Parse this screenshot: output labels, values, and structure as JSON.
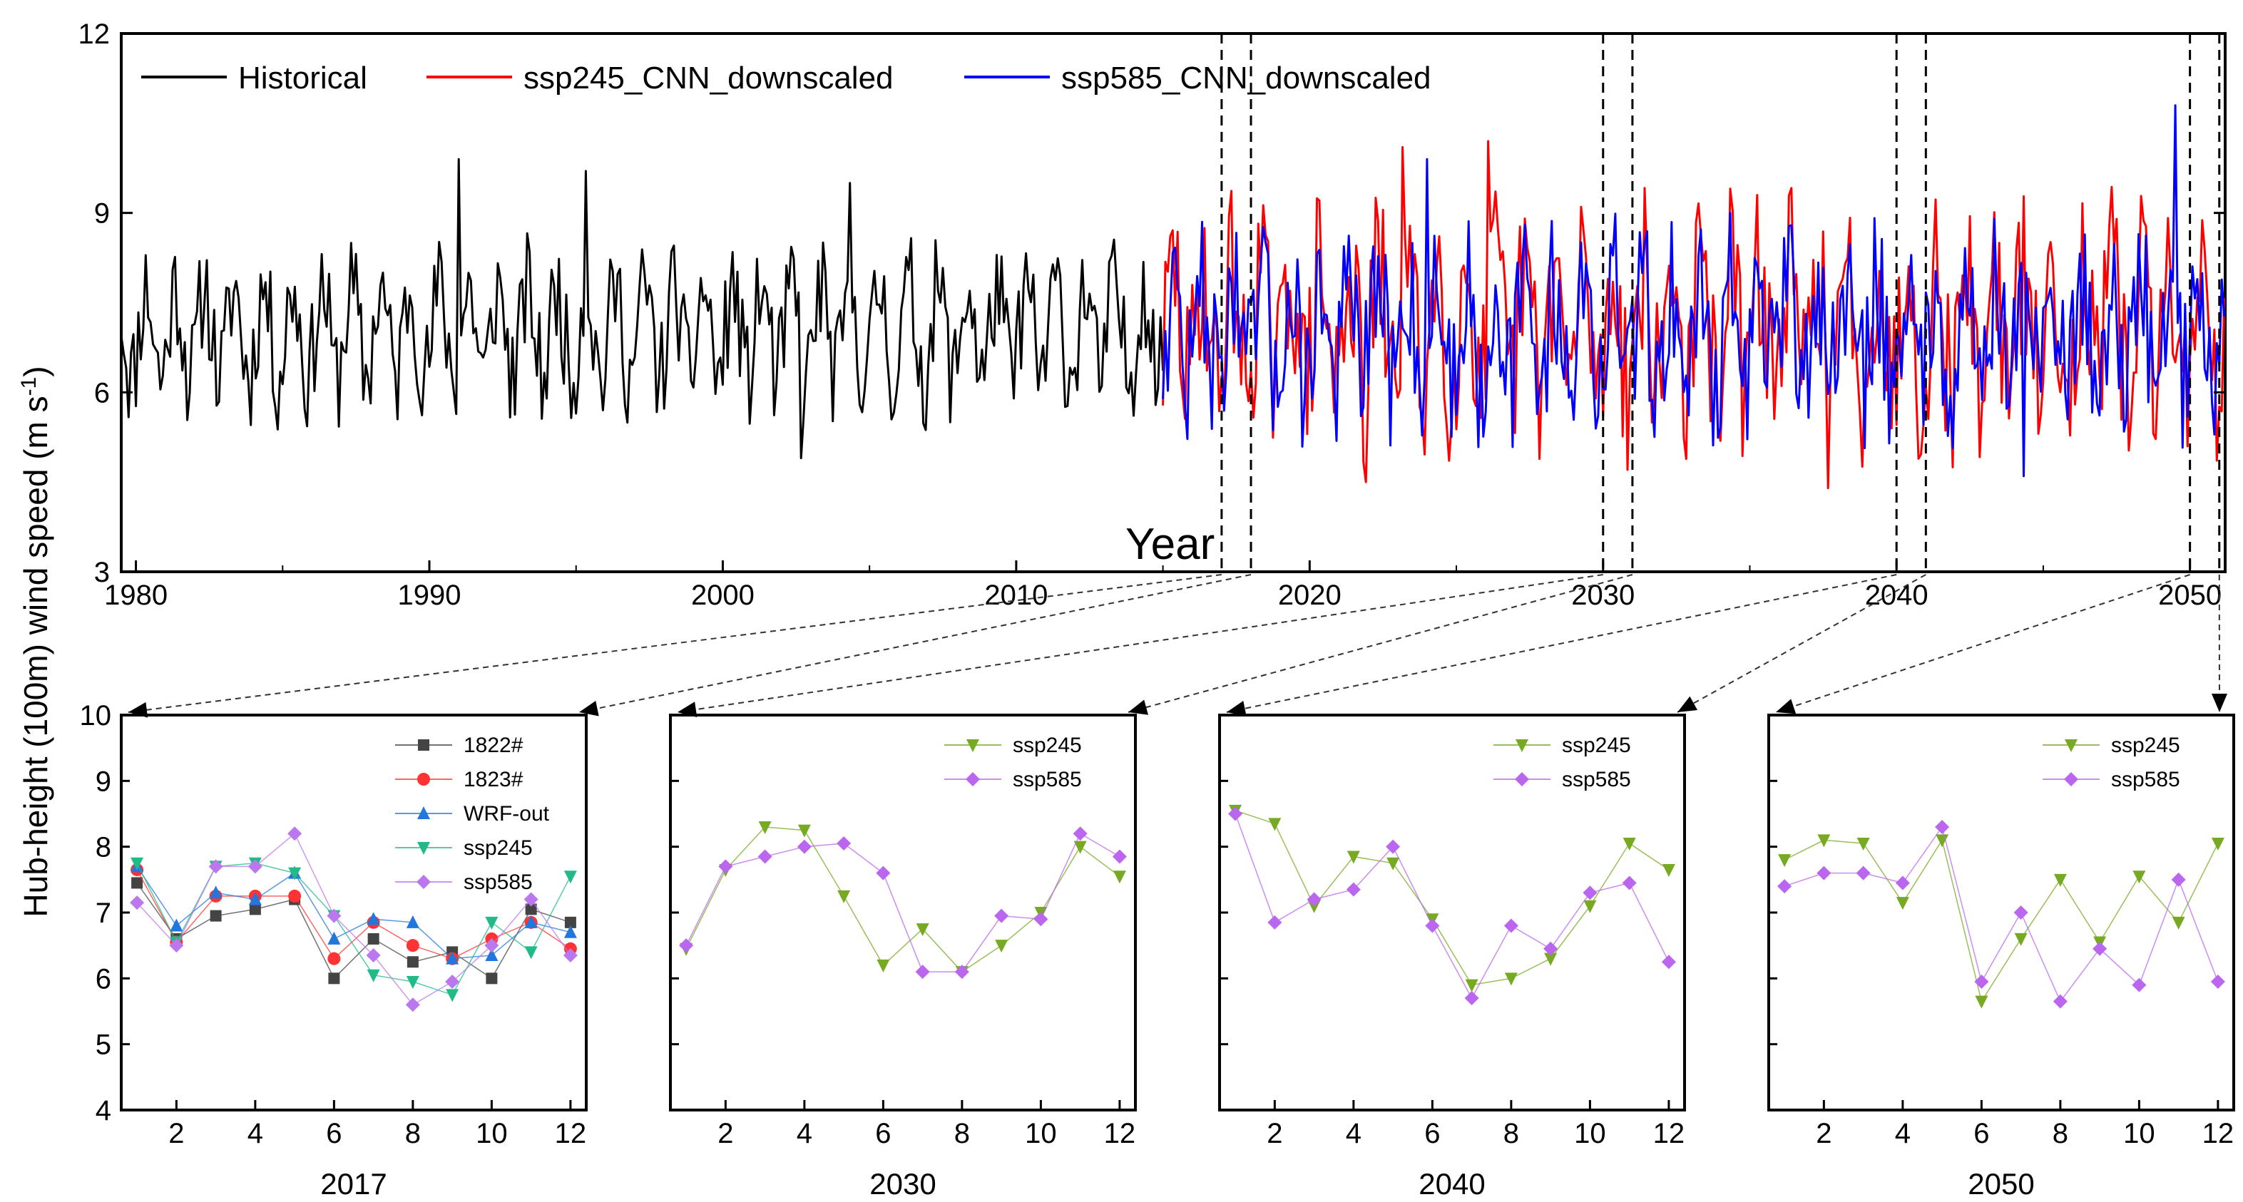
{
  "chart_data": [
    {
      "type": "line",
      "title": "",
      "xlabel": "Year",
      "ylabel": "Hub-height (100m) wind speed (m s-1)",
      "ylabel_main": "Hub-height (100m) wind speed (m s",
      "ylabel_sup": "-1",
      "ylabel_close": ")",
      "xlim": [
        1979.5,
        2051.2
      ],
      "ylim": [
        3,
        12
      ],
      "xticks": [
        1980,
        1990,
        2000,
        2010,
        2020,
        2030,
        2040,
        2050
      ],
      "yticks": [
        3,
        6,
        9,
        12
      ],
      "legend": [
        "Historical",
        "ssp245_CNN_downscaled",
        "ssp585_CNN_downscaled"
      ],
      "series": [
        {
          "name": "Historical",
          "color": "#000000",
          "x_range": [
            1979.5,
            2015.0
          ],
          "approx_mean": 7.0,
          "approx_range": [
            4.9,
            9.9
          ],
          "peaks": [
            [
              1991.0,
              9.9
            ],
            [
              1995.3,
              9.7
            ],
            [
              2004.3,
              9.5
            ],
            [
              2002.7,
              4.9
            ]
          ]
        },
        {
          "name": "ssp245_CNN_downscaled",
          "color": "#ff0000",
          "x_range": [
            2015.0,
            2051.2
          ],
          "approx_mean": 7.1,
          "approx_range": [
            4.4,
            10.2
          ],
          "peaks": [
            [
              2023.2,
              10.1
            ],
            [
              2026.1,
              10.2
            ],
            [
              2037.7,
              4.4
            ],
            [
              2021.9,
              4.5
            ]
          ]
        },
        {
          "name": "ssp585_CNN_downscaled",
          "color": "#0000ff",
          "x_range": [
            2015.0,
            2051.2
          ],
          "approx_mean": 7.0,
          "approx_range": [
            4.5,
            10.8
          ],
          "peaks": [
            [
              2049.5,
              10.8
            ],
            [
              2024.0,
              9.9
            ],
            [
              2044.3,
              4.6
            ]
          ]
        }
      ],
      "highlight_years": [
        2017,
        2030,
        2040,
        2050
      ]
    },
    {
      "type": "line",
      "xlabel": "2017",
      "ylim": [
        4,
        10
      ],
      "xlim": [
        0.6,
        12.4
      ],
      "xticks": [
        2,
        4,
        6,
        8,
        10,
        12
      ],
      "yticks": [
        4,
        5,
        6,
        7,
        8,
        9,
        10
      ],
      "months": [
        1,
        2,
        3,
        4,
        5,
        6,
        7,
        8,
        9,
        10,
        11,
        12
      ],
      "series": [
        {
          "name": "1822#",
          "color": "#444444",
          "marker": "square",
          "values": [
            7.45,
            6.6,
            6.95,
            7.05,
            7.2,
            6.0,
            6.6,
            6.25,
            6.4,
            6.0,
            7.05,
            6.85
          ]
        },
        {
          "name": "1823#",
          "color": "#ff3333",
          "marker": "circle",
          "values": [
            7.65,
            6.55,
            7.25,
            7.25,
            7.25,
            6.3,
            6.85,
            6.5,
            6.3,
            6.6,
            6.85,
            6.45
          ]
        },
        {
          "name": "WRF-out",
          "color": "#2277dd",
          "marker": "triangle-up",
          "values": [
            7.7,
            6.8,
            7.3,
            7.2,
            7.6,
            6.6,
            6.9,
            6.85,
            6.3,
            6.35,
            6.85,
            6.7
          ]
        },
        {
          "name": "ssp245",
          "color": "#22bb88",
          "marker": "triangle-down",
          "values": [
            7.75,
            6.55,
            7.7,
            7.75,
            7.6,
            6.95,
            6.05,
            5.95,
            5.75,
            6.85,
            6.4,
            7.55
          ]
        },
        {
          "name": "ssp585",
          "color": "#bb77ee",
          "marker": "diamond",
          "values": [
            7.15,
            6.5,
            7.7,
            7.7,
            8.2,
            6.95,
            6.35,
            5.6,
            5.95,
            6.5,
            7.2,
            6.35
          ]
        }
      ]
    },
    {
      "type": "line",
      "xlabel": "2030",
      "ylim": [
        4,
        10
      ],
      "xlim": [
        0.6,
        12.4
      ],
      "xticks": [
        2,
        4,
        6,
        8,
        10,
        12
      ],
      "months": [
        1,
        2,
        3,
        4,
        5,
        6,
        7,
        8,
        9,
        10,
        11,
        12
      ],
      "series": [
        {
          "name": "ssp245",
          "color": "#77aa22",
          "marker": "triangle-down",
          "values": [
            6.45,
            7.65,
            8.3,
            8.25,
            7.25,
            6.2,
            6.75,
            6.1,
            6.5,
            7.0,
            8.0,
            7.55
          ]
        },
        {
          "name": "ssp585",
          "color": "#bb66ee",
          "marker": "diamond",
          "values": [
            6.5,
            7.7,
            7.85,
            8.0,
            8.05,
            7.6,
            6.1,
            6.1,
            6.95,
            6.9,
            8.2,
            7.85
          ]
        }
      ]
    },
    {
      "type": "line",
      "xlabel": "2040",
      "ylim": [
        4,
        10
      ],
      "xlim": [
        0.6,
        12.4
      ],
      "xticks": [
        2,
        4,
        6,
        8,
        10,
        12
      ],
      "months": [
        1,
        2,
        3,
        4,
        5,
        6,
        7,
        8,
        9,
        10,
        11,
        12
      ],
      "series": [
        {
          "name": "ssp245",
          "color": "#77aa22",
          "marker": "triangle-down",
          "values": [
            8.55,
            8.35,
            7.1,
            7.85,
            7.75,
            6.9,
            5.9,
            6.0,
            6.3,
            7.1,
            8.05,
            7.65
          ]
        },
        {
          "name": "ssp585",
          "color": "#bb66ee",
          "marker": "diamond",
          "values": [
            8.5,
            6.85,
            7.2,
            7.35,
            8.0,
            6.8,
            5.7,
            6.8,
            6.45,
            7.3,
            7.45,
            6.25
          ]
        }
      ]
    },
    {
      "type": "line",
      "xlabel": "2050",
      "ylim": [
        4,
        10
      ],
      "xlim": [
        0.6,
        12.4
      ],
      "xticks": [
        2,
        4,
        6,
        8,
        10,
        12
      ],
      "months": [
        1,
        2,
        3,
        4,
        5,
        6,
        7,
        8,
        9,
        10,
        11,
        12
      ],
      "series": [
        {
          "name": "ssp245",
          "color": "#77aa22",
          "marker": "triangle-down",
          "values": [
            7.8,
            8.1,
            8.05,
            7.15,
            8.1,
            5.65,
            6.6,
            7.5,
            6.55,
            7.55,
            6.85,
            8.05
          ]
        },
        {
          "name": "ssp585",
          "color": "#bb66ee",
          "marker": "diamond",
          "values": [
            7.4,
            7.6,
            7.6,
            7.45,
            8.3,
            5.95,
            7.0,
            5.65,
            6.45,
            5.9,
            7.5,
            5.95
          ]
        }
      ]
    }
  ]
}
